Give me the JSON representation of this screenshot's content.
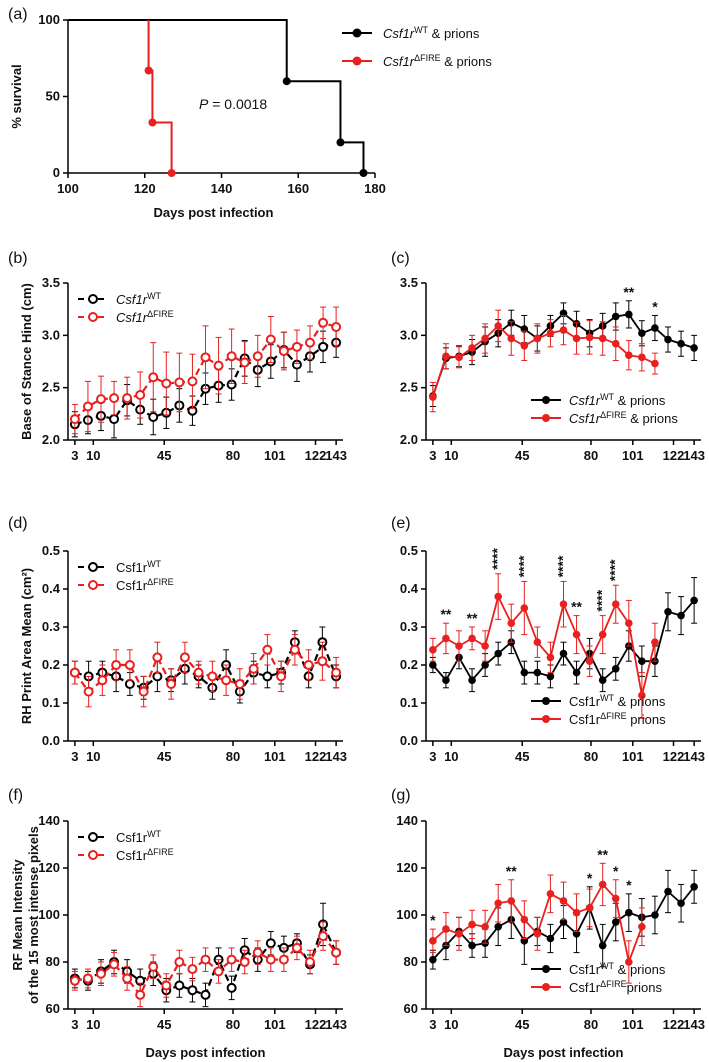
{
  "colors": {
    "wt": "#000000",
    "fire": "#e8201f"
  },
  "x_ticks_days": [
    "3",
    "10",
    "45",
    "80",
    "101",
    "122",
    "143"
  ],
  "chart_data": [
    {
      "id": "a",
      "panel_label": "(a)",
      "type": "line",
      "ylabel": "% survival",
      "xlabel": "Days post infection",
      "xlim": [
        100,
        180
      ],
      "ylim": [
        0,
        100
      ],
      "xticks": [
        100,
        120,
        140,
        160,
        180
      ],
      "yticks": [
        0,
        50,
        100
      ],
      "annotation": {
        "italic": "P",
        "text": " = 0.0018"
      },
      "series": [
        {
          "name": "Csf1rWT & prions",
          "legend_italic": "Csf1r",
          "legend_sup": "WT",
          "legend_after": " & prions",
          "color": "#000000",
          "step_x": [
            100,
            157,
            157,
            171,
            171,
            177,
            177
          ],
          "step_y": [
            100,
            100,
            60,
            60,
            20,
            20,
            0
          ],
          "points_x": [
            157,
            171,
            177
          ],
          "points_y": [
            60,
            20,
            0
          ]
        },
        {
          "name": "Csf1rΔFIRE & prions",
          "legend_italic": "Csf1r",
          "legend_sup": "ΔFIRE",
          "legend_after": " & prions",
          "color": "#e8201f",
          "step_x": [
            121,
            121,
            122,
            122,
            127,
            127
          ],
          "step_y": [
            100,
            67,
            67,
            33,
            33,
            0
          ],
          "points_x": [
            121,
            122,
            127
          ],
          "points_y": [
            67,
            33,
            0
          ]
        }
      ]
    },
    {
      "id": "b",
      "panel_label": "(b)",
      "type": "line",
      "style": "dashed-open",
      "ylabel": "Base of Stance Hind (cm)",
      "xlabel": "",
      "ylim": [
        2.0,
        3.5
      ],
      "yticks": [
        "2.0",
        "2.5",
        "3.0",
        "3.5"
      ],
      "tick_decimals": 1,
      "series": [
        {
          "name": "Csf1rWT",
          "legend_italic": "Csf1r",
          "legend_sup": "WT",
          "color": "#000000",
          "values": [
            2.15,
            2.19,
            2.23,
            2.2,
            2.38,
            2.29,
            2.22,
            2.26,
            2.33,
            2.28,
            2.49,
            2.52,
            2.53,
            2.78,
            2.67,
            2.75,
            2.86,
            2.72,
            2.8,
            2.89,
            2.93
          ],
          "errors": [
            0.12,
            0.13,
            0.14,
            0.18,
            0.15,
            0.14,
            0.17,
            0.15,
            0.16,
            0.14,
            0.15,
            0.16,
            0.15,
            0.17,
            0.16,
            0.16,
            0.17,
            0.16,
            0.15,
            0.15,
            0.14
          ]
        },
        {
          "name": "Csf1rΔFIRE",
          "legend_italic": "Csf1r",
          "legend_sup": "ΔFIRE",
          "color": "#e8201f",
          "values": [
            2.2,
            2.32,
            2.39,
            2.4,
            2.4,
            2.43,
            2.6,
            2.54,
            2.55,
            2.56,
            2.79,
            2.71,
            2.8,
            2.74,
            2.8,
            2.96,
            2.85,
            2.89,
            2.93,
            3.12,
            3.08
          ],
          "errors": [
            0.14,
            0.24,
            0.22,
            0.16,
            0.2,
            0.22,
            0.33,
            0.3,
            0.28,
            0.26,
            0.3,
            0.27,
            0.26,
            0.2,
            0.2,
            0.22,
            0.18,
            0.16,
            0.16,
            0.15,
            0.19
          ]
        }
      ]
    },
    {
      "id": "c",
      "panel_label": "(c)",
      "type": "line",
      "style": "solid-filled",
      "ylabel": "",
      "xlabel": "",
      "ylim": [
        2.0,
        3.5
      ],
      "yticks": [
        "2.0",
        "2.5",
        "3.0",
        "3.5"
      ],
      "tick_decimals": 1,
      "series": [
        {
          "name": "Csf1rWT & prions",
          "legend_italic": "Csf1r",
          "legend_sup": "WT",
          "legend_after": " & prions",
          "color": "#000000",
          "values": [
            2.42,
            2.78,
            2.8,
            2.84,
            2.94,
            3.02,
            3.12,
            3.06,
            2.97,
            3.09,
            3.21,
            3.11,
            3.02,
            3.09,
            3.18,
            3.2,
            3.02,
            3.07,
            2.96,
            2.92,
            2.88
          ],
          "errors": [
            0.1,
            0.1,
            0.1,
            0.12,
            0.14,
            0.13,
            0.12,
            0.13,
            0.12,
            0.1,
            0.1,
            0.12,
            0.13,
            0.12,
            0.13,
            0.13,
            0.12,
            0.12,
            0.12,
            0.12,
            0.12
          ]
        },
        {
          "name": "Csf1rΔFIRE & prions",
          "legend_italic": "Csf1r",
          "legend_sup": "ΔFIRE",
          "legend_after": " & prions",
          "color": "#e8201f",
          "values": [
            2.41,
            2.8,
            2.79,
            2.88,
            2.97,
            3.09,
            2.97,
            2.9,
            2.97,
            3.02,
            3.05,
            2.97,
            2.98,
            2.97,
            2.92,
            2.81,
            2.79,
            2.73
          ],
          "errors": [
            0.14,
            0.12,
            0.1,
            0.12,
            0.14,
            0.15,
            0.16,
            0.14,
            0.14,
            0.13,
            0.14,
            0.15,
            0.16,
            0.16,
            0.16,
            0.14,
            0.13,
            0.1
          ]
        }
      ],
      "significance": [
        {
          "index": 15,
          "label": "**"
        },
        {
          "index": 17,
          "label": "*"
        }
      ]
    },
    {
      "id": "d",
      "panel_label": "(d)",
      "type": "line",
      "style": "dashed-open",
      "ylabel": "RH Print Area Mean (cm²)",
      "xlabel": "",
      "ylim": [
        0.0,
        0.5
      ],
      "yticks": [
        "0.0",
        "0.1",
        "0.2",
        "0.3",
        "0.4",
        "0.5"
      ],
      "tick_decimals": 1,
      "series": [
        {
          "name": "Csf1rWT",
          "legend_plain": "Csf1r",
          "legend_sup": "WT",
          "color": "#000000",
          "values": [
            0.18,
            0.17,
            0.18,
            0.17,
            0.15,
            0.14,
            0.17,
            0.16,
            0.19,
            0.17,
            0.14,
            0.2,
            0.13,
            0.18,
            0.17,
            0.18,
            0.26,
            0.17,
            0.26,
            0.17
          ],
          "errors": [
            0.03,
            0.04,
            0.03,
            0.04,
            0.03,
            0.03,
            0.04,
            0.03,
            0.04,
            0.03,
            0.03,
            0.04,
            0.03,
            0.03,
            0.03,
            0.03,
            0.03,
            0.03,
            0.04,
            0.03
          ]
        },
        {
          "name": "Csf1rΔFIRE",
          "legend_plain": "Csf1r",
          "legend_sup": "ΔFIRE",
          "color": "#e8201f",
          "values": [
            0.18,
            0.13,
            0.16,
            0.2,
            0.2,
            0.13,
            0.22,
            0.15,
            0.22,
            0.18,
            0.17,
            0.16,
            0.15,
            0.19,
            0.24,
            0.17,
            0.24,
            0.2,
            0.21,
            0.18
          ],
          "errors": [
            0.03,
            0.04,
            0.04,
            0.04,
            0.04,
            0.04,
            0.04,
            0.04,
            0.04,
            0.03,
            0.04,
            0.04,
            0.04,
            0.04,
            0.04,
            0.04,
            0.04,
            0.04,
            0.05,
            0.04
          ]
        }
      ]
    },
    {
      "id": "e",
      "panel_label": "(e)",
      "type": "line",
      "style": "solid-filled",
      "ylabel": "",
      "xlabel": "",
      "ylim": [
        0.0,
        0.5
      ],
      "yticks": [
        "0.0",
        "0.1",
        "0.2",
        "0.3",
        "0.4",
        "0.5"
      ],
      "tick_decimals": 1,
      "series": [
        {
          "name": "Csf1rWT & prions",
          "legend_plain": "Csf1r",
          "legend_sup": "WT",
          "legend_after": " & prions",
          "color": "#000000",
          "values": [
            0.2,
            0.16,
            0.22,
            0.16,
            0.2,
            0.23,
            0.26,
            0.18,
            0.18,
            0.17,
            0.23,
            0.18,
            0.23,
            0.16,
            0.19,
            0.25,
            0.21,
            0.21,
            0.34,
            0.33,
            0.37
          ],
          "errors": [
            0.02,
            0.02,
            0.03,
            0.03,
            0.03,
            0.03,
            0.03,
            0.03,
            0.03,
            0.03,
            0.03,
            0.03,
            0.04,
            0.03,
            0.03,
            0.04,
            0.04,
            0.04,
            0.05,
            0.05,
            0.06
          ]
        },
        {
          "name": "Csf1rΔFIRE prions",
          "legend_plain": "Csf1r",
          "legend_sup": "ΔFIRE",
          "legend_after": " prions",
          "color": "#e8201f",
          "values": [
            0.24,
            0.27,
            0.25,
            0.27,
            0.25,
            0.38,
            0.31,
            0.35,
            0.26,
            0.22,
            0.36,
            0.28,
            0.21,
            0.28,
            0.36,
            0.31,
            0.12,
            0.26
          ],
          "errors": [
            0.03,
            0.04,
            0.04,
            0.03,
            0.04,
            0.06,
            0.05,
            0.07,
            0.04,
            0.04,
            0.06,
            0.05,
            0.04,
            0.05,
            0.05,
            0.06,
            0.06,
            0.05
          ]
        }
      ],
      "significance": [
        {
          "index": 1,
          "label": "**"
        },
        {
          "index": 3,
          "label": "**"
        },
        {
          "index": 5,
          "label": "****"
        },
        {
          "index": 7,
          "label": "****"
        },
        {
          "index": 10,
          "label": "****"
        },
        {
          "index": 11,
          "label": "**"
        },
        {
          "index": 13,
          "label": "****"
        },
        {
          "index": 14,
          "label": "****"
        }
      ]
    },
    {
      "id": "f",
      "panel_label": "(f)",
      "type": "line",
      "style": "dashed-open",
      "ylabel": "RF Mean Intensity",
      "ylabel2": "of the 15 most intense pixels",
      "xlabel": "Days post infection",
      "ylim": [
        60,
        140
      ],
      "yticks": [
        "60",
        "80",
        "100",
        "120",
        "140"
      ],
      "tick_decimals": 0,
      "series": [
        {
          "name": "Csf1rWT",
          "legend_plain": "Csf1r",
          "legend_sup": "WT",
          "color": "#000000",
          "values": [
            73,
            72,
            76,
            80,
            76,
            72,
            75,
            68,
            70,
            68,
            66,
            81,
            69,
            85,
            81,
            88,
            86,
            88,
            79,
            96,
            84
          ],
          "errors": [
            4,
            4,
            5,
            5,
            5,
            5,
            5,
            5,
            5,
            5,
            5,
            5,
            5,
            5,
            5,
            5,
            5,
            4,
            4,
            9,
            5
          ]
        },
        {
          "name": "Csf1rΔFIRE",
          "legend_plain": "Csf1r",
          "legend_sup": "ΔFIRE",
          "color": "#e8201f",
          "values": [
            72,
            73,
            75,
            79,
            73,
            66,
            78,
            70,
            80,
            77,
            81,
            76,
            81,
            80,
            84,
            81,
            81,
            86,
            80,
            91,
            84
          ],
          "errors": [
            4,
            4,
            5,
            5,
            5,
            5,
            5,
            5,
            5,
            5,
            5,
            5,
            5,
            5,
            5,
            5,
            5,
            5,
            5,
            6,
            5
          ]
        }
      ]
    },
    {
      "id": "g",
      "panel_label": "(g)",
      "type": "line",
      "style": "solid-filled",
      "ylabel": "",
      "xlabel": "Days post infection",
      "ylim": [
        60,
        140
      ],
      "yticks": [
        "60",
        "80",
        "100",
        "120",
        "140"
      ],
      "tick_decimals": 0,
      "series": [
        {
          "name": "Csf1rWT & prions",
          "legend_plain": "Csf1r",
          "legend_sup": "WT",
          "legend_after": " & prions",
          "color": "#000000",
          "values": [
            81,
            87,
            93,
            87,
            88,
            95,
            98,
            89,
            93,
            90,
            97,
            92,
            103,
            87,
            97,
            101,
            99,
            100,
            110,
            105,
            112
          ],
          "errors": [
            4,
            6,
            6,
            5,
            6,
            8,
            8,
            10,
            6,
            6,
            7,
            8,
            9,
            9,
            8,
            8,
            8,
            8,
            9,
            8,
            7
          ]
        },
        {
          "name": "Csf1rΔFIRE prions",
          "legend_plain": "Csf1r",
          "legend_sup": "ΔFIRE",
          "legend_after": "prions",
          "color": "#e8201f",
          "values": [
            89,
            94,
            92,
            96,
            95,
            105,
            106,
            98,
            92,
            109,
            106,
            101,
            103,
            113,
            107,
            80,
            95
          ],
          "errors": [
            5,
            7,
            7,
            6,
            7,
            8,
            9,
            8,
            7,
            8,
            8,
            8,
            8,
            9,
            8,
            9,
            8
          ]
        }
      ],
      "significance": [
        {
          "index": 0,
          "label": "*"
        },
        {
          "index": 6,
          "label": "**"
        },
        {
          "index": 12,
          "label": "*"
        },
        {
          "index": 13,
          "label": "**"
        },
        {
          "index": 14,
          "label": "*"
        },
        {
          "index": 15,
          "label": "*"
        }
      ]
    }
  ]
}
